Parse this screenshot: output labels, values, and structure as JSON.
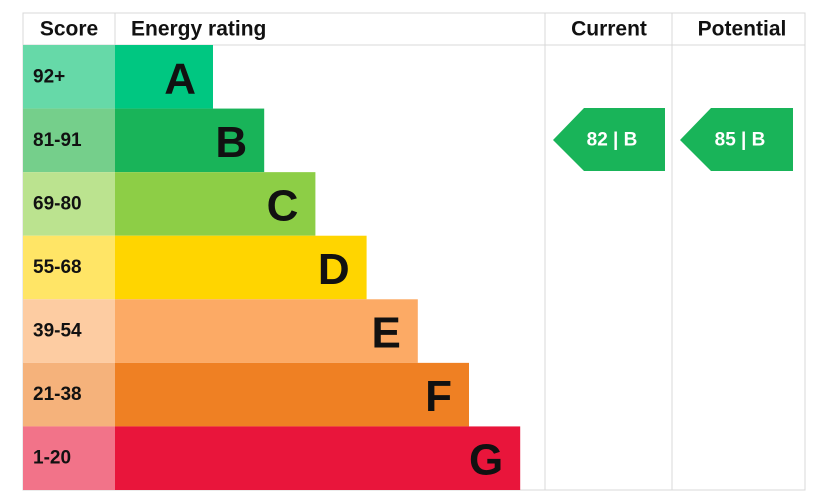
{
  "header": {
    "score": "Score",
    "energy_rating": "Energy rating",
    "current": "Current",
    "potential": "Potential"
  },
  "bands": [
    {
      "score": "92+",
      "letter": "A"
    },
    {
      "score": "81-91",
      "letter": "B"
    },
    {
      "score": "69-80",
      "letter": "C"
    },
    {
      "score": "55-68",
      "letter": "D"
    },
    {
      "score": "39-54",
      "letter": "E"
    },
    {
      "score": "21-38",
      "letter": "F"
    },
    {
      "score": "1-20",
      "letter": "G"
    }
  ],
  "current": {
    "label": "82 | B"
  },
  "potential": {
    "label": "85 | B"
  }
}
